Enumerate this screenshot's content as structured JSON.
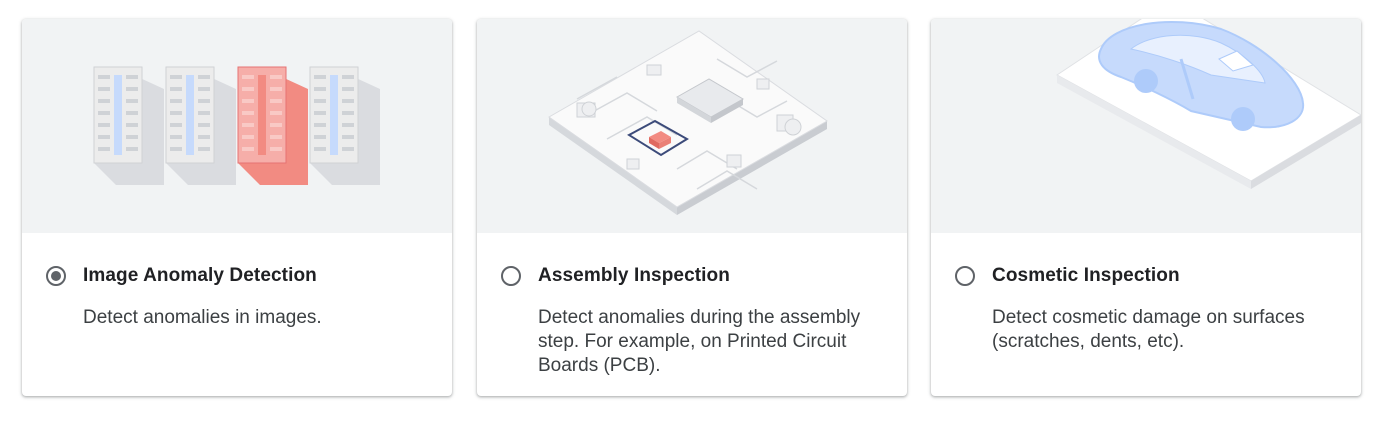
{
  "options": [
    {
      "title": "Image Anomaly Detection",
      "description": "Detect anomalies in images.",
      "selected": true,
      "illustration": "server-racks-illustration"
    },
    {
      "title": "Assembly Inspection",
      "description": "Detect anomalies during the assembly step. For example, on Printed Circuit Boards (PCB).",
      "selected": false,
      "illustration": "circuit-board-illustration"
    },
    {
      "title": "Cosmetic Inspection",
      "description": "Detect cosmetic damage on surfaces (scratches, dents, etc).",
      "selected": false,
      "illustration": "car-body-illustration"
    }
  ],
  "colors": {
    "card_image_bg": "#f1f3f4",
    "anomaly_red": "#f28b82",
    "highlight_blue": "#aecbfa",
    "radio_gray": "#5f6368"
  }
}
